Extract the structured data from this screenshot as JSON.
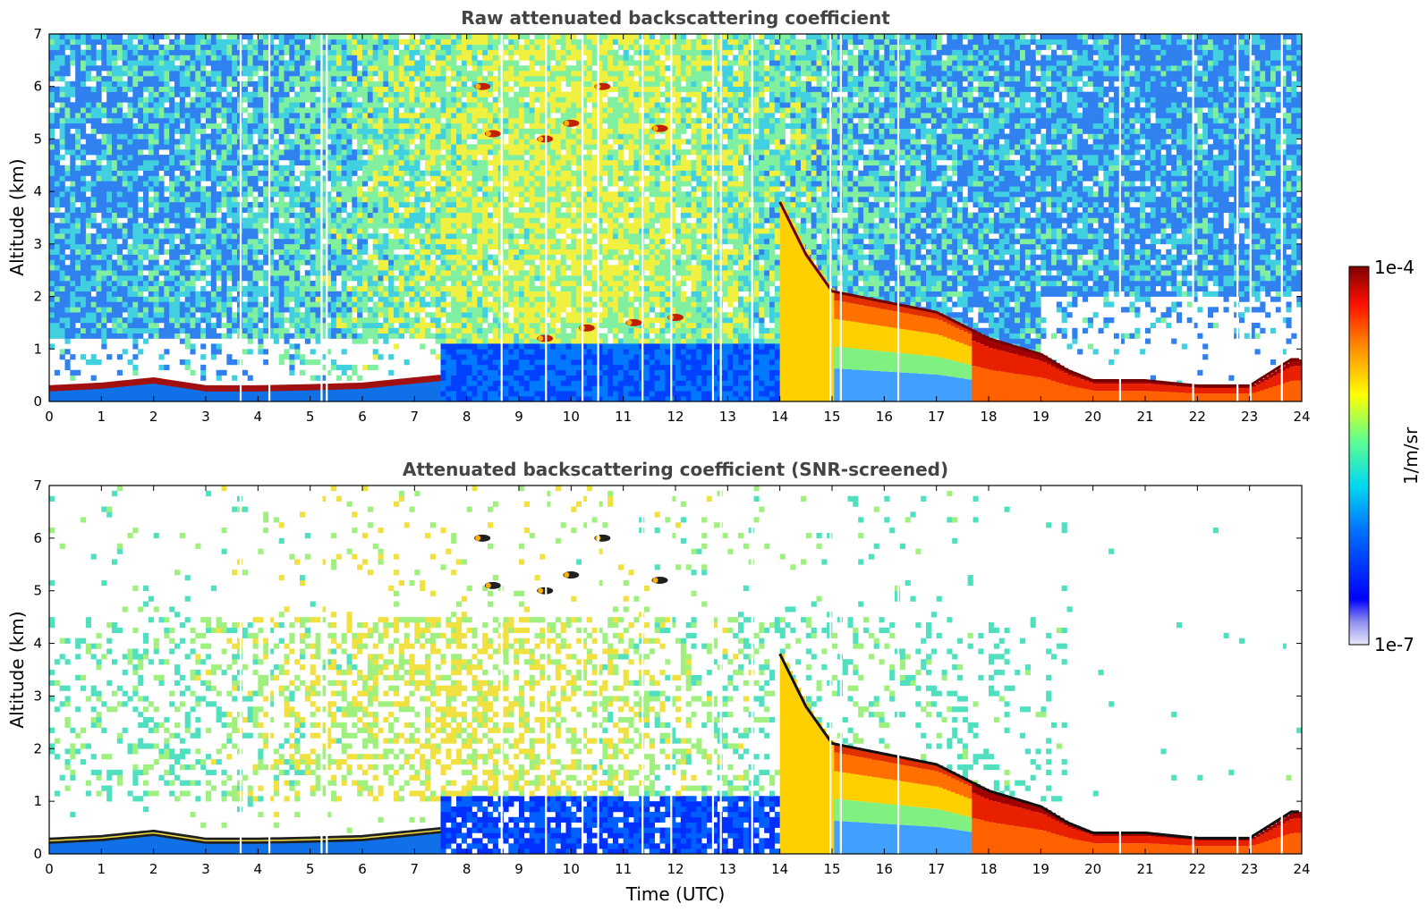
{
  "chart_data": [
    {
      "type": "heatmap",
      "title": "Raw attenuated backscattering coefficient",
      "xlabel": "",
      "ylabel": "Altitude (km)",
      "xlim": [
        0,
        24
      ],
      "ylim": [
        0,
        7
      ],
      "xticks": [
        "0",
        "1",
        "2",
        "3",
        "4",
        "5",
        "6",
        "7",
        "8",
        "9",
        "10",
        "11",
        "12",
        "13",
        "14",
        "15",
        "16",
        "17",
        "18",
        "19",
        "20",
        "21",
        "22",
        "23",
        "24"
      ],
      "yticks": [
        "0",
        "1",
        "2",
        "3",
        "4",
        "5",
        "6",
        "7"
      ],
      "screening": "raw",
      "boundary_layer_top_km": [
        [
          0,
          0.3
        ],
        [
          1,
          0.35
        ],
        [
          2,
          0.45
        ],
        [
          3,
          0.3
        ],
        [
          4,
          0.3
        ],
        [
          5,
          0.32
        ],
        [
          6,
          0.35
        ],
        [
          7,
          0.45
        ],
        [
          7.5,
          0.5
        ]
      ],
      "cloud_layer_top_km": [
        [
          14,
          3.8
        ],
        [
          14.5,
          2.8
        ],
        [
          15,
          2.1
        ],
        [
          16,
          1.9
        ],
        [
          17,
          1.7
        ],
        [
          18,
          1.2
        ],
        [
          19,
          0.9
        ],
        [
          19.5,
          0.6
        ],
        [
          20,
          0.4
        ],
        [
          21,
          0.4
        ],
        [
          22,
          0.3
        ],
        [
          23,
          0.3
        ],
        [
          23.8,
          0.8
        ]
      ],
      "elevated_features": [
        {
          "time": 8.3,
          "alt_km": 6.0
        },
        {
          "time": 8.5,
          "alt_km": 5.1
        },
        {
          "time": 9.5,
          "alt_km": 5.0
        },
        {
          "time": 10.0,
          "alt_km": 5.3
        },
        {
          "time": 10.6,
          "alt_km": 6.0
        },
        {
          "time": 11.7,
          "alt_km": 5.2
        },
        {
          "time": 9.5,
          "alt_km": 1.2
        },
        {
          "time": 10.3,
          "alt_km": 1.4
        },
        {
          "time": 11.2,
          "alt_km": 1.5
        },
        {
          "time": 12.0,
          "alt_km": 1.6
        }
      ]
    },
    {
      "type": "heatmap",
      "title": "Attenuated backscattering coefficient (SNR-screened)",
      "xlabel": "Time (UTC)",
      "ylabel": "Altitude (km)",
      "xlim": [
        0,
        24
      ],
      "ylim": [
        0,
        7
      ],
      "xticks": [
        "0",
        "1",
        "2",
        "3",
        "4",
        "5",
        "6",
        "7",
        "8",
        "9",
        "10",
        "11",
        "12",
        "13",
        "14",
        "15",
        "16",
        "17",
        "18",
        "19",
        "20",
        "21",
        "22",
        "23",
        "24"
      ],
      "yticks": [
        "0",
        "1",
        "2",
        "3",
        "4",
        "5",
        "6",
        "7"
      ],
      "screening": "snr",
      "boundary_layer_top_km": [
        [
          0,
          0.3
        ],
        [
          1,
          0.35
        ],
        [
          2,
          0.45
        ],
        [
          3,
          0.3
        ],
        [
          4,
          0.3
        ],
        [
          5,
          0.32
        ],
        [
          6,
          0.35
        ],
        [
          7,
          0.45
        ],
        [
          7.5,
          0.5
        ]
      ],
      "cloud_layer_top_km": [
        [
          14,
          3.8
        ],
        [
          14.5,
          2.8
        ],
        [
          15,
          2.1
        ],
        [
          16,
          1.9
        ],
        [
          17,
          1.7
        ],
        [
          18,
          1.2
        ],
        [
          19,
          0.9
        ],
        [
          19.5,
          0.6
        ],
        [
          20,
          0.4
        ],
        [
          21,
          0.4
        ],
        [
          22,
          0.3
        ],
        [
          23,
          0.3
        ],
        [
          23.8,
          0.8
        ]
      ],
      "elevated_features": [
        {
          "time": 8.3,
          "alt_km": 6.0
        },
        {
          "time": 8.5,
          "alt_km": 5.1
        },
        {
          "time": 9.5,
          "alt_km": 5.0
        },
        {
          "time": 10.0,
          "alt_km": 5.3
        },
        {
          "time": 10.6,
          "alt_km": 6.0
        },
        {
          "time": 11.7,
          "alt_km": 5.2
        }
      ]
    }
  ],
  "colorbar": {
    "label": "1/m/sr",
    "max_label": "1e-4",
    "min_label": "1e-7",
    "colormap": "jet",
    "scale": "log",
    "colors": [
      "#e8e8f8",
      "#0000ff",
      "#00a0ff",
      "#00e0e0",
      "#80ff80",
      "#ffff00",
      "#ff8000",
      "#ff0000",
      "#800000"
    ]
  }
}
